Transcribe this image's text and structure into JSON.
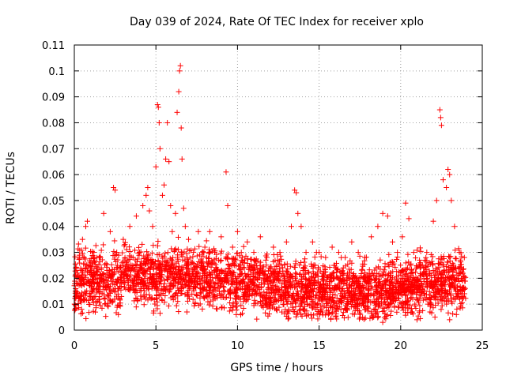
{
  "chart_data": {
    "type": "scatter",
    "title": "Day 039 of 2024, Rate Of TEC Index for receiver xplo",
    "xlabel": "GPS time / hours",
    "ylabel": "ROTI / TECUs",
    "xlim": [
      0,
      25
    ],
    "ylim": [
      0,
      0.11
    ],
    "x_ticks": [
      0,
      5,
      10,
      15,
      20,
      25
    ],
    "x_tick_labels": [
      "0",
      "5",
      "10",
      "15",
      "20",
      "25"
    ],
    "y_ticks": [
      0,
      0.01,
      0.02,
      0.03,
      0.04,
      0.05,
      0.06,
      0.07,
      0.08,
      0.09,
      0.1,
      0.11
    ],
    "y_tick_labels": [
      "0",
      "0.01",
      "0.02",
      "0.03",
      "0.04",
      "0.05",
      "0.06",
      "0.07",
      "0.08",
      "0.09",
      "0.1",
      "0.11"
    ],
    "grid": true,
    "marker": "+",
    "color": "#ff0000",
    "series": [
      {
        "points": [
          [
            0.1,
            0.015
          ],
          [
            0.2,
            0.022
          ],
          [
            0.3,
            0.028
          ],
          [
            0.4,
            0.012
          ],
          [
            0.5,
            0.035
          ],
          [
            0.6,
            0.018
          ],
          [
            0.7,
            0.04
          ],
          [
            0.8,
            0.042
          ],
          [
            0.9,
            0.025
          ],
          [
            1.0,
            0.013
          ],
          [
            1.2,
            0.03
          ],
          [
            1.4,
            0.02
          ],
          [
            1.6,
            0.028
          ],
          [
            1.8,
            0.045
          ],
          [
            2.0,
            0.022
          ],
          [
            2.2,
            0.038
          ],
          [
            2.4,
            0.055
          ],
          [
            2.5,
            0.054
          ],
          [
            2.6,
            0.03
          ],
          [
            2.8,
            0.012
          ],
          [
            3.0,
            0.035
          ],
          [
            3.2,
            0.02
          ],
          [
            3.4,
            0.04
          ],
          [
            3.6,
            0.028
          ],
          [
            3.8,
            0.044
          ],
          [
            4.0,
            0.03
          ],
          [
            4.2,
            0.048
          ],
          [
            4.4,
            0.052
          ],
          [
            4.5,
            0.055
          ],
          [
            4.6,
            0.046
          ],
          [
            4.8,
            0.04
          ],
          [
            5.0,
            0.063
          ],
          [
            5.1,
            0.087
          ],
          [
            5.15,
            0.086
          ],
          [
            5.2,
            0.08
          ],
          [
            5.25,
            0.07
          ],
          [
            5.4,
            0.052
          ],
          [
            5.5,
            0.056
          ],
          [
            5.6,
            0.066
          ],
          [
            5.7,
            0.08
          ],
          [
            5.8,
            0.065
          ],
          [
            5.9,
            0.048
          ],
          [
            6.0,
            0.038
          ],
          [
            6.2,
            0.045
          ],
          [
            6.3,
            0.084
          ],
          [
            6.4,
            0.092
          ],
          [
            6.45,
            0.1
          ],
          [
            6.5,
            0.102
          ],
          [
            6.55,
            0.078
          ],
          [
            6.6,
            0.066
          ],
          [
            6.7,
            0.047
          ],
          [
            6.8,
            0.04
          ],
          [
            7.0,
            0.035
          ],
          [
            7.3,
            0.03
          ],
          [
            7.6,
            0.038
          ],
          [
            8.0,
            0.032
          ],
          [
            8.3,
            0.038
          ],
          [
            8.6,
            0.03
          ],
          [
            9.0,
            0.036
          ],
          [
            9.3,
            0.061
          ],
          [
            9.4,
            0.048
          ],
          [
            9.7,
            0.032
          ],
          [
            10.0,
            0.038
          ],
          [
            10.3,
            0.028
          ],
          [
            10.6,
            0.034
          ],
          [
            11.0,
            0.03
          ],
          [
            11.4,
            0.036
          ],
          [
            11.8,
            0.028
          ],
          [
            12.2,
            0.032
          ],
          [
            12.6,
            0.03
          ],
          [
            13.0,
            0.034
          ],
          [
            13.3,
            0.04
          ],
          [
            13.5,
            0.054
          ],
          [
            13.6,
            0.053
          ],
          [
            13.7,
            0.045
          ],
          [
            13.9,
            0.04
          ],
          [
            14.2,
            0.03
          ],
          [
            14.6,
            0.034
          ],
          [
            15.0,
            0.03
          ],
          [
            15.4,
            0.028
          ],
          [
            15.8,
            0.032
          ],
          [
            16.2,
            0.03
          ],
          [
            16.6,
            0.028
          ],
          [
            17.0,
            0.034
          ],
          [
            17.4,
            0.03
          ],
          [
            17.8,
            0.028
          ],
          [
            18.2,
            0.036
          ],
          [
            18.6,
            0.04
          ],
          [
            18.9,
            0.045
          ],
          [
            19.2,
            0.044
          ],
          [
            19.5,
            0.034
          ],
          [
            19.8,
            0.03
          ],
          [
            20.1,
            0.036
          ],
          [
            20.3,
            0.049
          ],
          [
            20.5,
            0.043
          ],
          [
            20.8,
            0.03
          ],
          [
            21.2,
            0.026
          ],
          [
            21.6,
            0.03
          ],
          [
            22.0,
            0.042
          ],
          [
            22.2,
            0.05
          ],
          [
            22.4,
            0.085
          ],
          [
            22.45,
            0.082
          ],
          [
            22.5,
            0.079
          ],
          [
            22.6,
            0.058
          ],
          [
            22.8,
            0.055
          ],
          [
            22.9,
            0.062
          ],
          [
            23.0,
            0.06
          ],
          [
            23.1,
            0.05
          ],
          [
            23.3,
            0.04
          ],
          [
            23.6,
            0.03
          ],
          [
            23.9,
            0.028
          ],
          [
            0.05,
            0.008
          ],
          [
            2.7,
            0.006
          ],
          [
            6.9,
            0.007
          ],
          [
            10.2,
            0.006
          ],
          [
            14.5,
            0.006
          ],
          [
            18.9,
            0.003
          ],
          [
            21.0,
            0.004
          ],
          [
            22.1,
            0.005
          ],
          [
            23.0,
            0.004
          ]
        ]
      }
    ]
  }
}
